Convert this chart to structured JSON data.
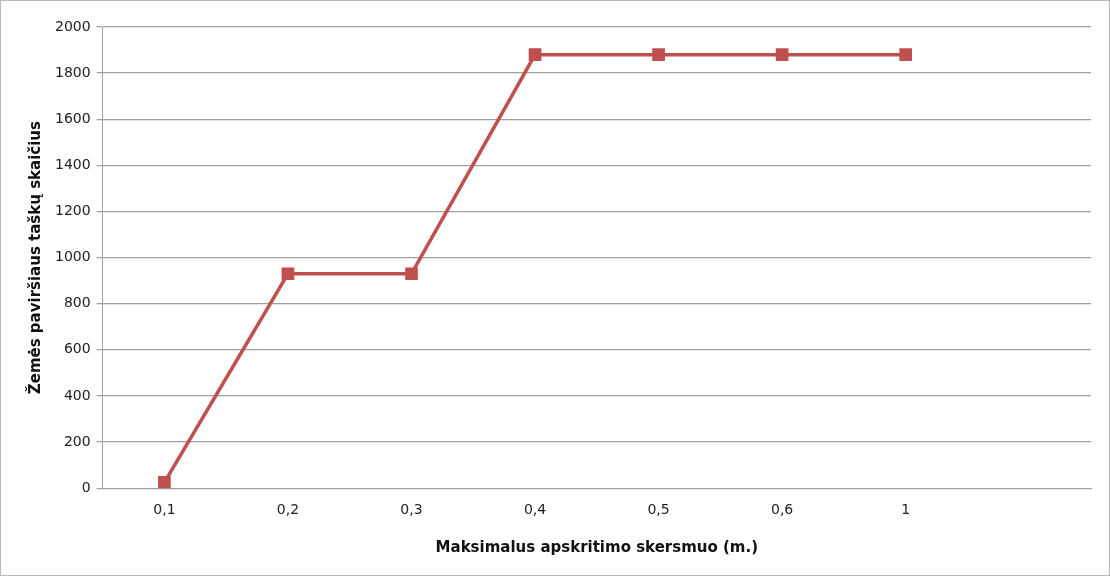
{
  "chart_data": {
    "type": "line",
    "xlabel": "Maksimalus apskritimo skersmuo (m.)",
    "ylabel": "Žemės paviršiaus taškų skaičius",
    "categories": [
      "0,1",
      "0,2",
      "0,3",
      "0,4",
      "0,5",
      "0,6",
      "1",
      null
    ],
    "series": [
      {
        "color": "#c0504d",
        "values": [
          25,
          930,
          930,
          1880,
          1880,
          1880,
          1880,
          null
        ]
      }
    ],
    "ylim": [
      0,
      2000
    ],
    "yticks": [
      0,
      200,
      400,
      600,
      800,
      1000,
      1200,
      1400,
      1600,
      1800,
      2000
    ],
    "grid": "y",
    "marker": "square",
    "line_style": "solid",
    "legend": false
  }
}
